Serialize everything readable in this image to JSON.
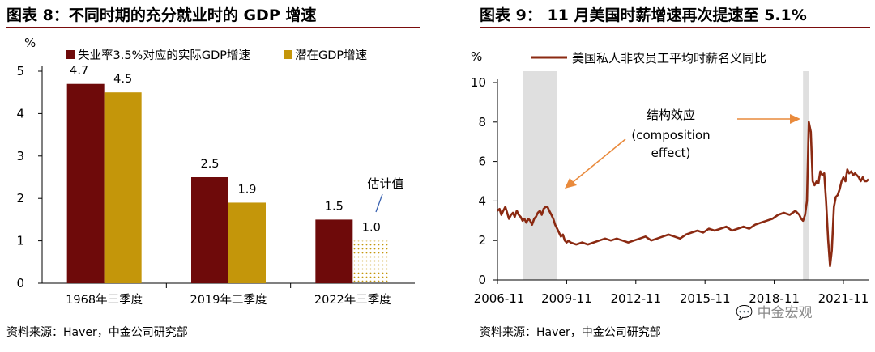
{
  "left": {
    "title": "图表 8：不同时期的充分就业时的 GDP 增速",
    "source": "资料来源：Haver，中金公司研究部",
    "chart_data": {
      "type": "bar",
      "ylabel": "%",
      "ylim": [
        0,
        5
      ],
      "yticks": [
        "0",
        "1",
        "2",
        "3",
        "4",
        "5"
      ],
      "categories": [
        "1968年三季度",
        "2019年二季度",
        "2022年三季度"
      ],
      "series": [
        {
          "name": "失业率3.5%对应的实际GDP增速",
          "color": "#6e0a0a",
          "values": [
            4.7,
            2.5,
            1.5
          ],
          "labels": [
            "4.7",
            "2.5",
            "1.5"
          ]
        },
        {
          "name": "潜在GDP增速",
          "color": "#c4960a",
          "values": [
            4.5,
            1.9,
            1.0
          ],
          "labels": [
            "4.5",
            "1.9",
            "1.0"
          ]
        }
      ],
      "annotation": "估计值"
    }
  },
  "right": {
    "title": "图表 9：  11 月美国时薪增速再次提速至 5.1%",
    "source": "资料来源：Haver，中金公司研究部",
    "chart_data": {
      "type": "line",
      "ylabel": "%",
      "ylim": [
        0,
        10
      ],
      "yticks": [
        "0",
        "2",
        "4",
        "6",
        "8",
        "10"
      ],
      "xticks": [
        "2006-11",
        "2009-11",
        "2012-11",
        "2015-11",
        "2018-11",
        "2021-11"
      ],
      "xtick_years": [
        2006.83,
        2009.83,
        2012.83,
        2015.83,
        2018.83,
        2021.83
      ],
      "xlim": [
        2006.83,
        2022.92
      ],
      "legend": "美国私人非农员工平均时薪名义同比",
      "color": "#8b2a12",
      "shaded_ranges": [
        [
          2007.92,
          2009.42
        ],
        [
          2020.08,
          2020.33
        ]
      ],
      "annotation_lines": [
        "结构效应",
        "(composition",
        "effect)"
      ],
      "series": [
        {
          "name": "美国私人非农员工平均时薪名义同比",
          "x": [
            2006.83,
            2006.92,
            2007.0,
            2007.08,
            2007.17,
            2007.25,
            2007.33,
            2007.42,
            2007.5,
            2007.58,
            2007.67,
            2007.75,
            2007.83,
            2007.92,
            2008.0,
            2008.08,
            2008.17,
            2008.25,
            2008.33,
            2008.42,
            2008.5,
            2008.58,
            2008.67,
            2008.75,
            2008.83,
            2008.92,
            2009.0,
            2009.08,
            2009.17,
            2009.25,
            2009.33,
            2009.42,
            2009.5,
            2009.58,
            2009.67,
            2009.75,
            2009.83,
            2009.92,
            2010.0,
            2010.25,
            2010.5,
            2010.75,
            2011.0,
            2011.25,
            2011.5,
            2011.75,
            2012.0,
            2012.25,
            2012.5,
            2012.75,
            2013.0,
            2013.25,
            2013.5,
            2013.75,
            2014.0,
            2014.25,
            2014.5,
            2014.75,
            2015.0,
            2015.25,
            2015.5,
            2015.75,
            2016.0,
            2016.25,
            2016.5,
            2016.75,
            2017.0,
            2017.25,
            2017.5,
            2017.75,
            2018.0,
            2018.25,
            2018.5,
            2018.75,
            2019.0,
            2019.25,
            2019.5,
            2019.75,
            2019.92,
            2020.0,
            2020.08,
            2020.17,
            2020.25,
            2020.33,
            2020.42,
            2020.5,
            2020.58,
            2020.67,
            2020.75,
            2020.83,
            2020.92,
            2021.0,
            2021.08,
            2021.17,
            2021.25,
            2021.33,
            2021.42,
            2021.5,
            2021.58,
            2021.67,
            2021.75,
            2021.83,
            2021.92,
            2022.0,
            2022.08,
            2022.17,
            2022.25,
            2022.33,
            2022.42,
            2022.5,
            2022.58,
            2022.67,
            2022.75,
            2022.83,
            2022.92
          ],
          "y": [
            3.5,
            3.6,
            3.3,
            3.5,
            3.7,
            3.4,
            3.1,
            3.3,
            3.4,
            3.2,
            3.5,
            3.3,
            3.2,
            3.0,
            3.1,
            2.9,
            3.1,
            3.0,
            2.8,
            3.1,
            3.2,
            3.4,
            3.5,
            3.3,
            3.6,
            3.7,
            3.7,
            3.5,
            3.3,
            3.1,
            2.8,
            2.6,
            2.4,
            2.2,
            2.3,
            2.0,
            1.9,
            2.0,
            1.9,
            1.8,
            1.9,
            1.8,
            1.9,
            2.0,
            2.1,
            2.0,
            2.1,
            2.0,
            1.9,
            2.0,
            2.1,
            2.2,
            2.0,
            2.1,
            2.2,
            2.3,
            2.2,
            2.1,
            2.3,
            2.4,
            2.5,
            2.4,
            2.6,
            2.5,
            2.6,
            2.7,
            2.5,
            2.6,
            2.7,
            2.6,
            2.8,
            2.9,
            3.0,
            3.1,
            3.3,
            3.4,
            3.3,
            3.5,
            3.3,
            3.1,
            3.0,
            3.3,
            4.0,
            8.0,
            7.5,
            5.0,
            4.8,
            5.0,
            4.9,
            5.5,
            5.3,
            5.4,
            4.0,
            2.0,
            0.7,
            1.5,
            3.7,
            4.2,
            4.3,
            4.6,
            5.0,
            5.2,
            5.0,
            5.6,
            5.4,
            5.5,
            5.3,
            5.4,
            5.3,
            5.2,
            5.0,
            5.2,
            5.0,
            5.0,
            5.1
          ]
        }
      ]
    }
  },
  "watermark": "中金宏观"
}
